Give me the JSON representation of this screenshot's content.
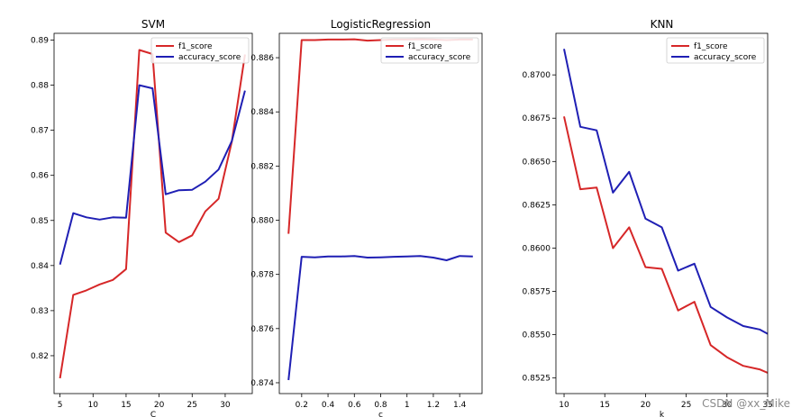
{
  "watermark": "CSDN @xx_Mike",
  "chart_data": [
    {
      "type": "line",
      "title": "SVM",
      "xlabel": "C",
      "ylabel": "",
      "xlim": [
        4.1,
        34.1
      ],
      "ylim": [
        0.8116,
        0.8915
      ],
      "xticks": [
        5,
        10,
        15,
        20,
        25,
        30
      ],
      "yticks": [
        0.82,
        0.83,
        0.84,
        0.85,
        0.86,
        0.87,
        0.88,
        0.89
      ],
      "ytick_labels": [
        "0.82",
        "0.83",
        "0.84",
        "0.85",
        "0.86",
        "0.87",
        "0.88",
        "0.89"
      ],
      "legend": "top-right",
      "x": [
        5,
        7,
        9,
        11,
        13,
        15,
        17,
        19,
        21,
        23,
        25,
        27,
        29,
        31,
        33
      ],
      "series": [
        {
          "name": "f1_score",
          "color": "#d62728",
          "values": [
            0.815,
            0.8335,
            0.8345,
            0.8358,
            0.8368,
            0.8392,
            0.8878,
            0.8869,
            0.8473,
            0.8452,
            0.8467,
            0.852,
            0.8548,
            0.8675,
            0.8868
          ]
        },
        {
          "name": "accuracy_score",
          "color": "#1f1fb4",
          "values": [
            0.8402,
            0.8516,
            0.8507,
            0.8502,
            0.8507,
            0.8506,
            0.88,
            0.8793,
            0.8558,
            0.8567,
            0.8568,
            0.8586,
            0.8613,
            0.8676,
            0.8788
          ]
        }
      ]
    },
    {
      "type": "line",
      "title": "LogisticRegression",
      "xlabel": "c",
      "ylabel": "",
      "xlim": [
        0.03,
        1.57
      ],
      "ylim": [
        0.8736,
        0.8869
      ],
      "xticks": [
        0.2,
        0.4,
        0.6,
        0.8,
        1.0,
        1.2,
        1.4
      ],
      "yticks": [
        0.874,
        0.876,
        0.878,
        0.88,
        0.882,
        0.884,
        0.886
      ],
      "ytick_labels": [
        "0.874",
        "0.876",
        "0.878",
        "0.880",
        "0.882",
        "0.884",
        "0.886"
      ],
      "legend": "top-right",
      "x": [
        0.1,
        0.2,
        0.3,
        0.4,
        0.5,
        0.6,
        0.7,
        0.8,
        0.9,
        1.0,
        1.1,
        1.2,
        1.3,
        1.4,
        1.5
      ],
      "series": [
        {
          "name": "f1_score",
          "color": "#d62728",
          "values": [
            0.8795,
            0.88665,
            0.88665,
            0.88667,
            0.88667,
            0.88668,
            0.88663,
            0.88665,
            0.88667,
            0.88667,
            0.88668,
            0.88667,
            0.88665,
            0.88667,
            0.88667
          ]
        },
        {
          "name": "accuracy_score",
          "color": "#1f1fb4",
          "values": [
            0.8741,
            0.87865,
            0.87863,
            0.87866,
            0.87866,
            0.87868,
            0.87862,
            0.87863,
            0.87865,
            0.87866,
            0.87868,
            0.87862,
            0.87852,
            0.87868,
            0.87866
          ]
        }
      ]
    },
    {
      "type": "line",
      "title": "KNN",
      "xlabel": "k",
      "ylabel": "",
      "xlim": [
        9.0,
        35.0
      ],
      "ylim": [
        0.8516,
        0.8724
      ],
      "xticks": [
        10,
        15,
        20,
        25,
        30,
        35
      ],
      "yticks": [
        0.8525,
        0.855,
        0.8575,
        0.86,
        0.8625,
        0.865,
        0.8675,
        0.87
      ],
      "ytick_labels": [
        "0.8525",
        "0.8550",
        "0.8575",
        "0.8600",
        "0.8625",
        "0.8650",
        "0.8675",
        "0.8700"
      ],
      "legend": "top-right",
      "x": [
        10,
        12,
        14,
        16,
        18,
        20,
        22,
        24,
        26,
        28,
        30,
        32,
        34,
        36,
        38
      ],
      "series": [
        {
          "name": "f1_score",
          "color": "#d62728",
          "values": [
            0.8676,
            0.8634,
            0.8635,
            0.86,
            0.8612,
            0.8589,
            0.8588,
            0.8564,
            0.8569,
            0.8544,
            0.8537,
            0.8532,
            0.853,
            0.8526,
            0.8526
          ]
        },
        {
          "name": "accuracy_score",
          "color": "#1f1fb4",
          "values": [
            0.8715,
            0.867,
            0.8668,
            0.8632,
            0.8644,
            0.8617,
            0.8612,
            0.8587,
            0.8591,
            0.8566,
            0.856,
            0.8555,
            0.8553,
            0.8548,
            0.8545
          ]
        }
      ]
    }
  ]
}
